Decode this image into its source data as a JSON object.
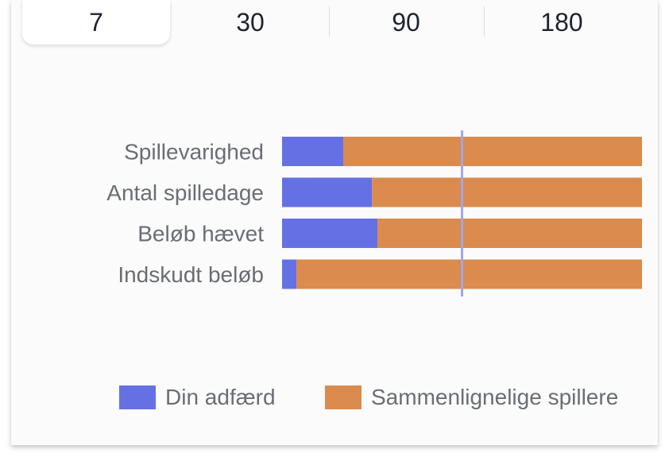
{
  "tabs": [
    {
      "label": "7",
      "active": true
    },
    {
      "label": "30",
      "active": false
    },
    {
      "label": "90",
      "active": false
    },
    {
      "label": "180",
      "active": false
    }
  ],
  "colors": {
    "din_adfaerd": "#6670e5",
    "sammenlignelige": "#da8b4d",
    "reference_line": "#a3a6e6",
    "label_text": "#6a6d75"
  },
  "chart_data": {
    "type": "bar",
    "orientation": "horizontal",
    "stacked": true,
    "categories": [
      "Spillevarighed",
      "Antal spilledage",
      "Beløb hævet",
      "Indskudt beløb"
    ],
    "series": [
      {
        "name": "Din adfærd",
        "values": [
          17,
          25,
          26.5,
          4
        ]
      },
      {
        "name": "Sammenlignelige spillere",
        "values": [
          83,
          75,
          73.5,
          96
        ]
      }
    ],
    "xlim": [
      0,
      100
    ],
    "reference_line": 50,
    "grid": false,
    "legend_position": "bottom"
  }
}
